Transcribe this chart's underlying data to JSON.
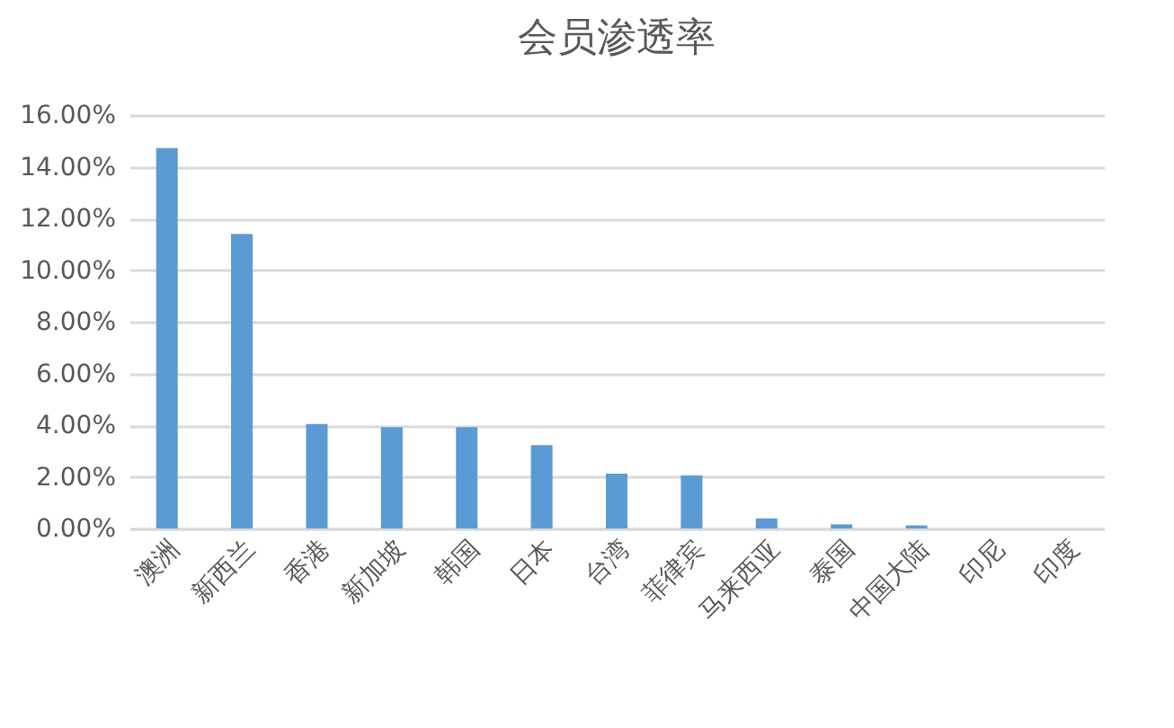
{
  "chart_data": {
    "type": "bar",
    "title": "会员渗透率",
    "categories": [
      "澳洲",
      "新西兰",
      "香港",
      "新加坡",
      "韩国",
      "日本",
      "台湾",
      "菲律宾",
      "马来西亚",
      "泰国",
      "中国大陆",
      "印尼",
      "印度"
    ],
    "values": [
      14.72,
      11.4,
      4.04,
      3.92,
      3.92,
      3.23,
      2.12,
      2.05,
      0.39,
      0.16,
      0.12,
      0,
      0
    ],
    "color": "#5b9bd5",
    "ylim": [
      0,
      16
    ],
    "yticks": [
      {
        "value": 0,
        "label": "0.00%"
      },
      {
        "value": 2,
        "label": "2.00%"
      },
      {
        "value": 4,
        "label": "4.00%"
      },
      {
        "value": 6,
        "label": "6.00%"
      },
      {
        "value": 8,
        "label": "8.00%"
      },
      {
        "value": 10,
        "label": "10.00%"
      },
      {
        "value": 12,
        "label": "12.00%"
      },
      {
        "value": 14,
        "label": "14.00%"
      },
      {
        "value": 16,
        "label": "16.00%"
      }
    ],
    "grid": "y"
  }
}
